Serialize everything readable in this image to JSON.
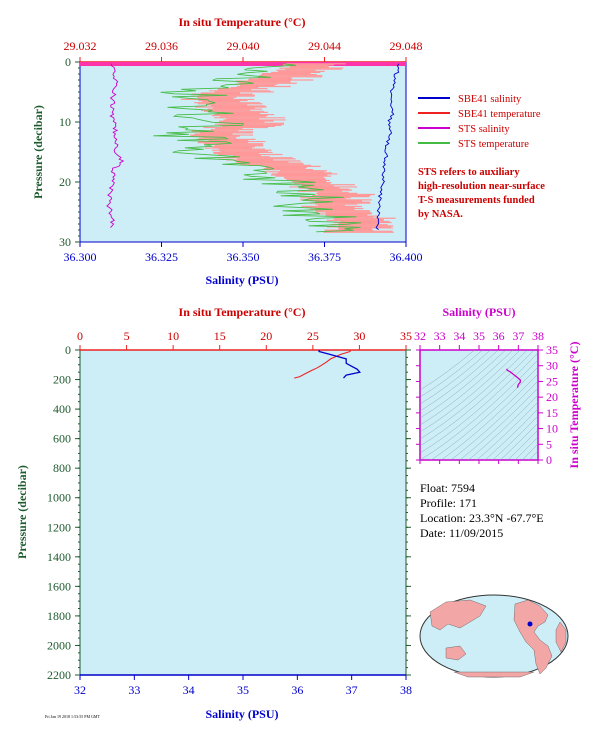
{
  "colors": {
    "salinity": "#0000cc",
    "temperature": "#ee2222",
    "sts_salinity": "#cc00cc",
    "sts_temperature": "#44bb44",
    "sheets_temperature_fill": "#ff9999",
    "plot_bg": "#cdeef7",
    "pressure_axis": "#1e5b2e"
  },
  "footer_tag": "Fri Jan 19 2018 1:53:55 PM GMT",
  "chart_data": [
    {
      "type": "line",
      "id": "top-profile",
      "top_xlabel": "In situ Temperature (°C)",
      "bottom_xlabel": "Salinity (PSU)",
      "ylabel": "Pressure (decibar)",
      "xlim_salinity": [
        36.3,
        36.4
      ],
      "xlim_temperature": [
        29.032,
        29.048
      ],
      "ylim": [
        0,
        30
      ],
      "salinity_ticks": [
        "36.300",
        "36.325",
        "36.350",
        "36.375",
        "36.400"
      ],
      "temperature_ticks": [
        "29.032",
        "29.036",
        "29.040",
        "29.044",
        "29.048"
      ],
      "pressure_ticks": [
        "0",
        "10",
        "20",
        "30"
      ],
      "legend": [
        {
          "label": "SBE41 salinity",
          "color": "#0000cc"
        },
        {
          "label": "SBE41 temperature",
          "color": "#ee2222"
        },
        {
          "label": "STS salinity",
          "color": "#cc00cc"
        },
        {
          "label": "STS temperature",
          "color": "#44bb44"
        }
      ],
      "note": [
        "STS refers to auxiliary",
        "high-resolution near-surface",
        "T-S measurements funded",
        "by NASA."
      ],
      "series": [
        {
          "name": "SBE41 salinity",
          "pressure": [
            0.2,
            2.0,
            4.0,
            6.0,
            8.0,
            10.0,
            12.0,
            14.0,
            16.0,
            18.0,
            20.0,
            22.0,
            24.0,
            26.0,
            28.0
          ],
          "values": [
            36.398,
            36.397,
            36.396,
            36.395,
            36.396,
            36.395,
            36.395,
            36.394,
            36.394,
            36.393,
            36.393,
            36.392,
            36.392,
            36.391,
            36.391
          ]
        },
        {
          "name": "STS salinity",
          "pressure": [
            0.5,
            3.0,
            6.0,
            9.0,
            12.0,
            15.0,
            16.5,
            18.0,
            20.0,
            22.0,
            24.0,
            26.0,
            27.5
          ],
          "values": [
            36.31,
            36.311,
            36.31,
            36.31,
            36.311,
            36.311,
            36.313,
            36.31,
            36.31,
            36.309,
            36.309,
            36.31,
            36.31
          ]
        },
        {
          "name": "SBE41 temperature",
          "pressure": [
            0.5,
            2.0,
            4.0,
            6.0,
            8.0,
            10.0,
            12.0,
            14.0,
            16.0,
            18.0,
            20.0,
            22.0,
            24.0,
            26.0,
            28.0
          ],
          "values": [
            29.044,
            29.043,
            29.041,
            29.039,
            29.04,
            29.041,
            29.039,
            29.04,
            29.041,
            29.043,
            29.044,
            29.045,
            29.045,
            29.046,
            29.046
          ]
        },
        {
          "name": "STS temperature",
          "pressure": [
            0.5,
            2.0,
            4.0,
            6.0,
            8.0,
            10.0,
            12.0,
            14.0,
            16.0,
            18.0,
            20.0,
            22.0,
            24.0,
            26.0,
            28.0
          ],
          "values": [
            29.043,
            29.041,
            29.039,
            29.037,
            29.038,
            29.039,
            29.037,
            29.038,
            29.039,
            29.041,
            29.042,
            29.043,
            29.043,
            29.044,
            29.045
          ]
        }
      ]
    },
    {
      "type": "line",
      "id": "full-profile",
      "top_xlabel": "In situ Temperature (°C)",
      "bottom_xlabel": "Salinity (PSU)",
      "ylabel": "Pressure (decibar)",
      "xlim_temperature": [
        0,
        35
      ],
      "xlim_salinity": [
        32,
        38
      ],
      "ylim": [
        0,
        2200
      ],
      "temperature_ticks": [
        "0",
        "5",
        "10",
        "15",
        "20",
        "25",
        "30",
        "35"
      ],
      "salinity_ticks": [
        "32",
        "33",
        "34",
        "35",
        "36",
        "37",
        "38"
      ],
      "pressure_ticks": [
        "0",
        "200",
        "400",
        "600",
        "800",
        "1000",
        "1200",
        "1400",
        "1600",
        "1800",
        "2000",
        "2200"
      ],
      "series": [
        {
          "name": "Salinity",
          "pressure": [
            0,
            10,
            30,
            60,
            90,
            110,
            130,
            150,
            170,
            190
          ],
          "values": [
            36.4,
            36.4,
            36.6,
            36.9,
            36.9,
            37.0,
            37.1,
            37.15,
            36.9,
            36.85
          ]
        },
        {
          "name": "Temperature",
          "pressure": [
            0,
            10,
            30,
            60,
            80,
            100,
            120,
            140,
            160,
            180,
            190
          ],
          "values": [
            29.0,
            29.0,
            28.0,
            26.9,
            26.5,
            26.0,
            25.5,
            24.8,
            24.2,
            23.6,
            23.0
          ]
        }
      ]
    },
    {
      "type": "scatter",
      "id": "ts-diagram",
      "top_xlabel": "Salinity (PSU)",
      "ylabel": "In situ Temperature (°C)",
      "xlim": [
        32,
        38
      ],
      "ylim": [
        0,
        35
      ],
      "x_ticks": [
        "32",
        "33",
        "34",
        "35",
        "36",
        "37",
        "38"
      ],
      "y_ticks": [
        "0",
        "5",
        "10",
        "15",
        "20",
        "25",
        "30",
        "35"
      ],
      "series": [
        {
          "name": "T-S",
          "x": [
            36.4,
            36.45,
            36.6,
            36.8,
            36.9,
            37.0,
            37.1,
            37.1,
            37.0,
            36.95
          ],
          "y": [
            29.0,
            28.5,
            28.0,
            27.0,
            26.5,
            26.0,
            25.5,
            24.8,
            24.0,
            23.0
          ]
        }
      ]
    }
  ],
  "info": {
    "float": "Float:  7594",
    "profile": "Profile:  171",
    "location": "Location:  23.3°N  -67.7°E",
    "date": "Date:  11/09/2015"
  }
}
